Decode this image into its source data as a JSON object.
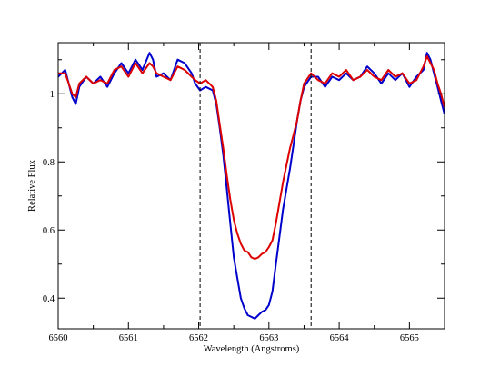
{
  "chart_data": {
    "type": "line",
    "title": "",
    "xlabel": "Wavelength (Angstroms)",
    "ylabel": "Relative Flux",
    "xlim": [
      6560,
      6565.5
    ],
    "ylim": [
      0.31,
      1.15
    ],
    "xticks": [
      6560,
      6561,
      6562,
      6563,
      6564,
      6565
    ],
    "xtick_labels": [
      "6560",
      "6561",
      "6562",
      "6563",
      "6564",
      "6565"
    ],
    "yticks": [
      0.4,
      0.6,
      0.8,
      1.0
    ],
    "ytick_labels": [
      "0.4",
      "0.6",
      "0.8",
      "1"
    ],
    "grid": false,
    "legend": "none",
    "vertical_lines": [
      {
        "x": 6562.02,
        "style": "dashed",
        "color": "#000000"
      },
      {
        "x": 6563.6,
        "style": "dashed",
        "color": "#000000"
      }
    ],
    "series": [
      {
        "color": "#0000cc",
        "points": [
          [
            6560.0,
            1.05
          ],
          [
            6560.1,
            1.07
          ],
          [
            6560.2,
            0.99
          ],
          [
            6560.25,
            0.97
          ],
          [
            6560.3,
            1.02
          ],
          [
            6560.4,
            1.05
          ],
          [
            6560.5,
            1.03
          ],
          [
            6560.6,
            1.05
          ],
          [
            6560.7,
            1.02
          ],
          [
            6560.8,
            1.06
          ],
          [
            6560.9,
            1.09
          ],
          [
            6561.0,
            1.06
          ],
          [
            6561.1,
            1.1
          ],
          [
            6561.2,
            1.07
          ],
          [
            6561.3,
            1.12
          ],
          [
            6561.35,
            1.1
          ],
          [
            6561.4,
            1.05
          ],
          [
            6561.5,
            1.06
          ],
          [
            6561.6,
            1.04
          ],
          [
            6561.7,
            1.1
          ],
          [
            6561.8,
            1.09
          ],
          [
            6561.9,
            1.06
          ],
          [
            6561.95,
            1.03
          ],
          [
            6562.02,
            1.01
          ],
          [
            6562.1,
            1.02
          ],
          [
            6562.2,
            1.01
          ],
          [
            6562.25,
            0.97
          ],
          [
            6562.3,
            0.9
          ],
          [
            6562.35,
            0.82
          ],
          [
            6562.4,
            0.72
          ],
          [
            6562.45,
            0.62
          ],
          [
            6562.5,
            0.52
          ],
          [
            6562.55,
            0.46
          ],
          [
            6562.6,
            0.4
          ],
          [
            6562.65,
            0.37
          ],
          [
            6562.7,
            0.35
          ],
          [
            6562.75,
            0.345
          ],
          [
            6562.8,
            0.34
          ],
          [
            6562.85,
            0.35
          ],
          [
            6562.9,
            0.36
          ],
          [
            6562.95,
            0.365
          ],
          [
            6563.0,
            0.38
          ],
          [
            6563.05,
            0.42
          ],
          [
            6563.1,
            0.5
          ],
          [
            6563.15,
            0.58
          ],
          [
            6563.2,
            0.66
          ],
          [
            6563.25,
            0.72
          ],
          [
            6563.3,
            0.78
          ],
          [
            6563.35,
            0.85
          ],
          [
            6563.4,
            0.92
          ],
          [
            6563.45,
            0.98
          ],
          [
            6563.5,
            1.02
          ],
          [
            6563.6,
            1.05
          ],
          [
            6563.7,
            1.05
          ],
          [
            6563.8,
            1.02
          ],
          [
            6563.9,
            1.05
          ],
          [
            6564.0,
            1.04
          ],
          [
            6564.1,
            1.06
          ],
          [
            6564.2,
            1.04
          ],
          [
            6564.3,
            1.05
          ],
          [
            6564.4,
            1.08
          ],
          [
            6564.5,
            1.06
          ],
          [
            6564.6,
            1.03
          ],
          [
            6564.7,
            1.06
          ],
          [
            6564.8,
            1.04
          ],
          [
            6564.9,
            1.06
          ],
          [
            6565.0,
            1.02
          ],
          [
            6565.1,
            1.05
          ],
          [
            6565.2,
            1.07
          ],
          [
            6565.25,
            1.12
          ],
          [
            6565.3,
            1.1
          ],
          [
            6565.35,
            1.06
          ],
          [
            6565.4,
            1.02
          ],
          [
            6565.45,
            0.98
          ],
          [
            6565.5,
            0.94
          ]
        ]
      },
      {
        "color": "#dd0000",
        "points": [
          [
            6560.0,
            1.06
          ],
          [
            6560.1,
            1.06
          ],
          [
            6560.2,
            1.0
          ],
          [
            6560.25,
            0.99
          ],
          [
            6560.3,
            1.03
          ],
          [
            6560.4,
            1.05
          ],
          [
            6560.5,
            1.03
          ],
          [
            6560.6,
            1.04
          ],
          [
            6560.7,
            1.03
          ],
          [
            6560.8,
            1.07
          ],
          [
            6560.9,
            1.08
          ],
          [
            6561.0,
            1.05
          ],
          [
            6561.1,
            1.09
          ],
          [
            6561.2,
            1.06
          ],
          [
            6561.3,
            1.09
          ],
          [
            6561.35,
            1.08
          ],
          [
            6561.4,
            1.06
          ],
          [
            6561.5,
            1.05
          ],
          [
            6561.6,
            1.04
          ],
          [
            6561.7,
            1.08
          ],
          [
            6561.8,
            1.07
          ],
          [
            6561.9,
            1.05
          ],
          [
            6561.95,
            1.04
          ],
          [
            6562.02,
            1.03
          ],
          [
            6562.1,
            1.04
          ],
          [
            6562.2,
            1.02
          ],
          [
            6562.25,
            0.98
          ],
          [
            6562.3,
            0.91
          ],
          [
            6562.35,
            0.84
          ],
          [
            6562.4,
            0.76
          ],
          [
            6562.45,
            0.69
          ],
          [
            6562.5,
            0.63
          ],
          [
            6562.55,
            0.59
          ],
          [
            6562.6,
            0.56
          ],
          [
            6562.65,
            0.54
          ],
          [
            6562.7,
            0.535
          ],
          [
            6562.75,
            0.52
          ],
          [
            6562.8,
            0.515
          ],
          [
            6562.85,
            0.52
          ],
          [
            6562.9,
            0.53
          ],
          [
            6562.95,
            0.535
          ],
          [
            6563.0,
            0.55
          ],
          [
            6563.05,
            0.57
          ],
          [
            6563.1,
            0.62
          ],
          [
            6563.15,
            0.68
          ],
          [
            6563.2,
            0.74
          ],
          [
            6563.25,
            0.79
          ],
          [
            6563.3,
            0.84
          ],
          [
            6563.35,
            0.88
          ],
          [
            6563.4,
            0.92
          ],
          [
            6563.45,
            0.98
          ],
          [
            6563.5,
            1.03
          ],
          [
            6563.6,
            1.06
          ],
          [
            6563.7,
            1.04
          ],
          [
            6563.8,
            1.03
          ],
          [
            6563.9,
            1.06
          ],
          [
            6564.0,
            1.05
          ],
          [
            6564.1,
            1.07
          ],
          [
            6564.2,
            1.04
          ],
          [
            6564.3,
            1.05
          ],
          [
            6564.4,
            1.07
          ],
          [
            6564.5,
            1.05
          ],
          [
            6564.6,
            1.04
          ],
          [
            6564.7,
            1.07
          ],
          [
            6564.8,
            1.05
          ],
          [
            6564.9,
            1.06
          ],
          [
            6565.0,
            1.03
          ],
          [
            6565.1,
            1.04
          ],
          [
            6565.2,
            1.08
          ],
          [
            6565.25,
            1.11
          ],
          [
            6565.3,
            1.09
          ],
          [
            6565.35,
            1.07
          ],
          [
            6565.4,
            1.03
          ],
          [
            6565.45,
            1.0
          ],
          [
            6565.5,
            0.96
          ]
        ]
      }
    ]
  }
}
